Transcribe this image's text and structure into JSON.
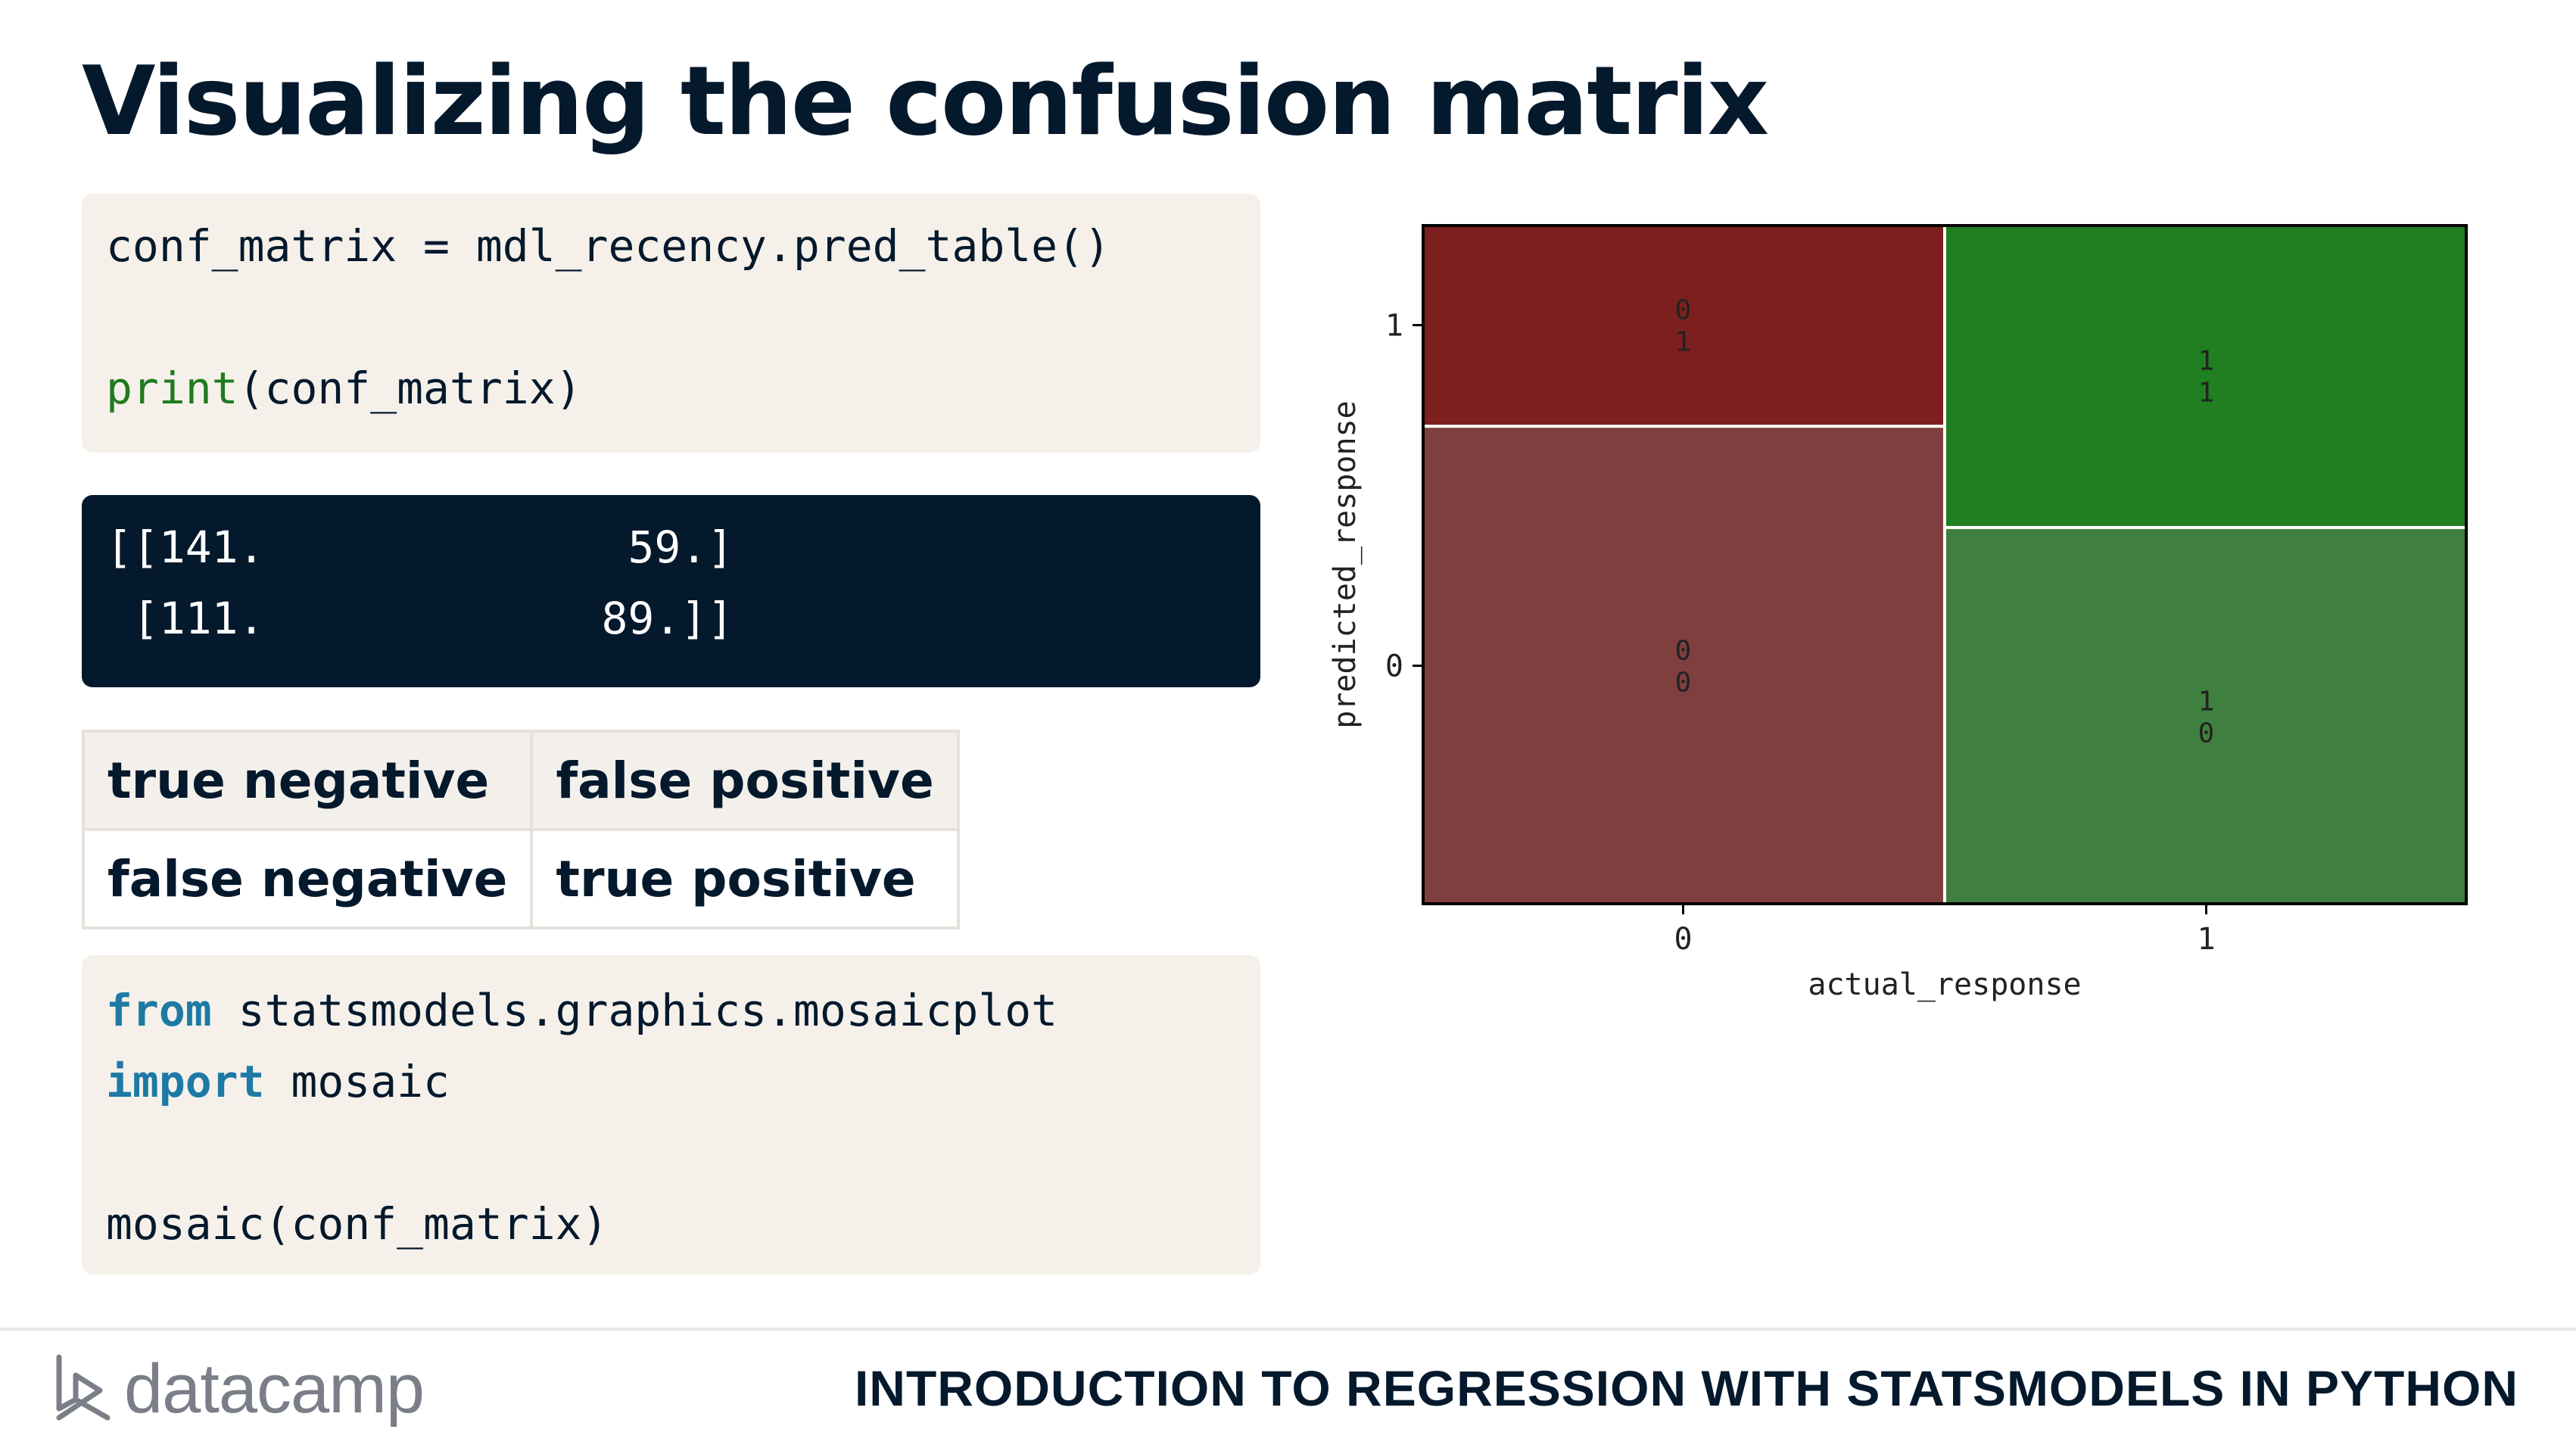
{
  "slide": {
    "title": "Visualizing the confusion matrix"
  },
  "code_block_1": {
    "line1": "conf_matrix = mdl_recency.pred_table()",
    "line2_func": "print",
    "line2_rest": "(conf_matrix)"
  },
  "output_block": {
    "line1_a": "[[141.",
    "line1_b": "59.]",
    "line2_a": " [111.",
    "line2_b": "89.]]"
  },
  "matrix_labels": {
    "r1c1": "true negative",
    "r1c2": "false positive",
    "r2c1": "false negative",
    "r2c2": "true positive"
  },
  "code_block_2": {
    "kw_from": "from",
    "module": " statsmodels.graphics.mosaicplot",
    "kw_import": "import",
    "name": " mosaic",
    "call": "mosaic(conf_matrix)"
  },
  "chart_data": {
    "type": "mosaic",
    "xlabel": "actual_response",
    "ylabel": "predicted_response",
    "x_ticks": [
      "0",
      "1"
    ],
    "y_ticks": [
      "0",
      "1"
    ],
    "tiles": [
      {
        "actual": "0",
        "predicted": "0",
        "label_top": "0",
        "label_bottom": "0",
        "value": 141,
        "color": "#7f3f3f"
      },
      {
        "actual": "0",
        "predicted": "1",
        "label_top": "0",
        "label_bottom": "1",
        "value": 59,
        "color": "#7e1f1f"
      },
      {
        "actual": "1",
        "predicted": "0",
        "label_top": "1",
        "label_bottom": "0",
        "value": 111,
        "color": "#3f7f3f"
      },
      {
        "actual": "1",
        "predicted": "1",
        "label_top": "1",
        "label_bottom": "1",
        "value": 89,
        "color": "#207f20"
      }
    ]
  },
  "footer": {
    "brand": "datacamp",
    "course": "INTRODUCTION TO REGRESSION WITH STATSMODELS IN PYTHON"
  }
}
